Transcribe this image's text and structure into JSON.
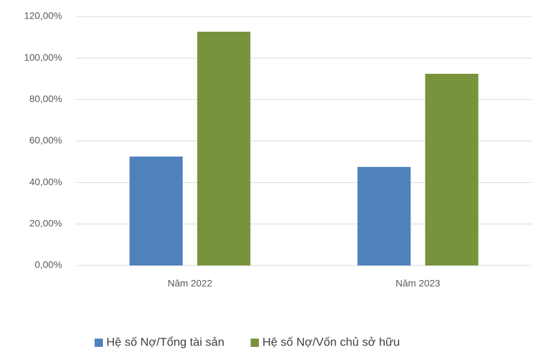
{
  "chart_data": {
    "type": "bar",
    "categories": [
      "Năm 2022",
      "Năm 2023"
    ],
    "series": [
      {
        "name": "Hệ số Nợ/Tổng tài sản",
        "color": "#4f81bd",
        "values": [
          52.5,
          47.5
        ]
      },
      {
        "name": "Hệ số Nợ/Vốn chủ sở hữu",
        "color": "#77933c",
        "values": [
          112.7,
          92.4
        ]
      }
    ],
    "ylim": [
      0,
      120
    ],
    "yticks": [
      {
        "value": 0,
        "label": "0,00%"
      },
      {
        "value": 20,
        "label": "20,00%"
      },
      {
        "value": 40,
        "label": "40,00%"
      },
      {
        "value": 60,
        "label": "60,00%"
      },
      {
        "value": 80,
        "label": "80,00%"
      },
      {
        "value": 100,
        "label": "100,00%"
      },
      {
        "value": 120,
        "label": "120,00%"
      }
    ],
    "grid": true,
    "legend": "bottom"
  }
}
